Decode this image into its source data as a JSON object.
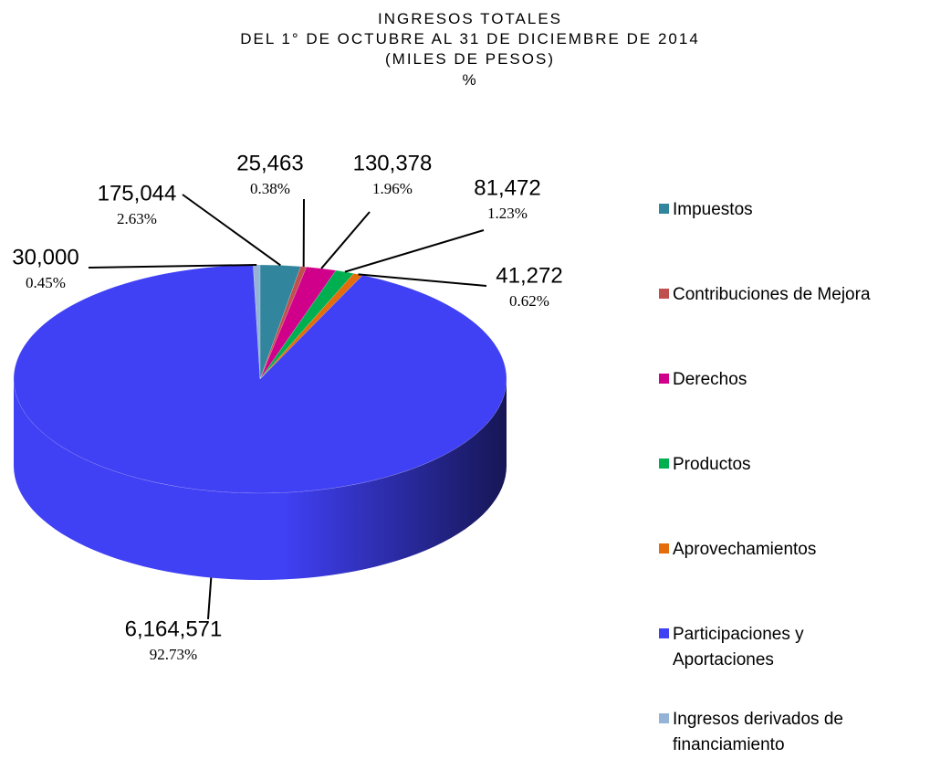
{
  "chart_data": {
    "type": "pie3d",
    "title": [
      "INGRESOS TOTALES",
      "DEL 1° DE OCTUBRE AL 31 DE DICIEMBRE DE 2014",
      "(MILES DE PESOS)",
      "%"
    ],
    "categories": [
      "Impuestos",
      "Contribuciones de Mejora",
      "Derechos",
      "Productos",
      "Aprovechamientos",
      "Participaciones y Aportaciones",
      "Ingresos derivados de financiamiento"
    ],
    "values": [
      175044,
      25463,
      130378,
      81472,
      41272,
      6164571,
      30000
    ],
    "value_labels": [
      "175,044",
      "25,463",
      "130,378",
      "81,472",
      "41,272",
      "6,164,571",
      "30,000"
    ],
    "percentages": [
      2.63,
      0.38,
      1.96,
      1.23,
      0.62,
      92.73,
      0.45
    ],
    "percentage_labels": [
      "2.63%",
      "0.38%",
      "1.96%",
      "1.23%",
      "0.62%",
      "92.73%",
      "0.45%"
    ],
    "colors": [
      "#31859c",
      "#c0504d",
      "#d0008a",
      "#00b050",
      "#e46c0a",
      "#4040f4",
      "#95b3d7"
    ],
    "legend": "right"
  }
}
